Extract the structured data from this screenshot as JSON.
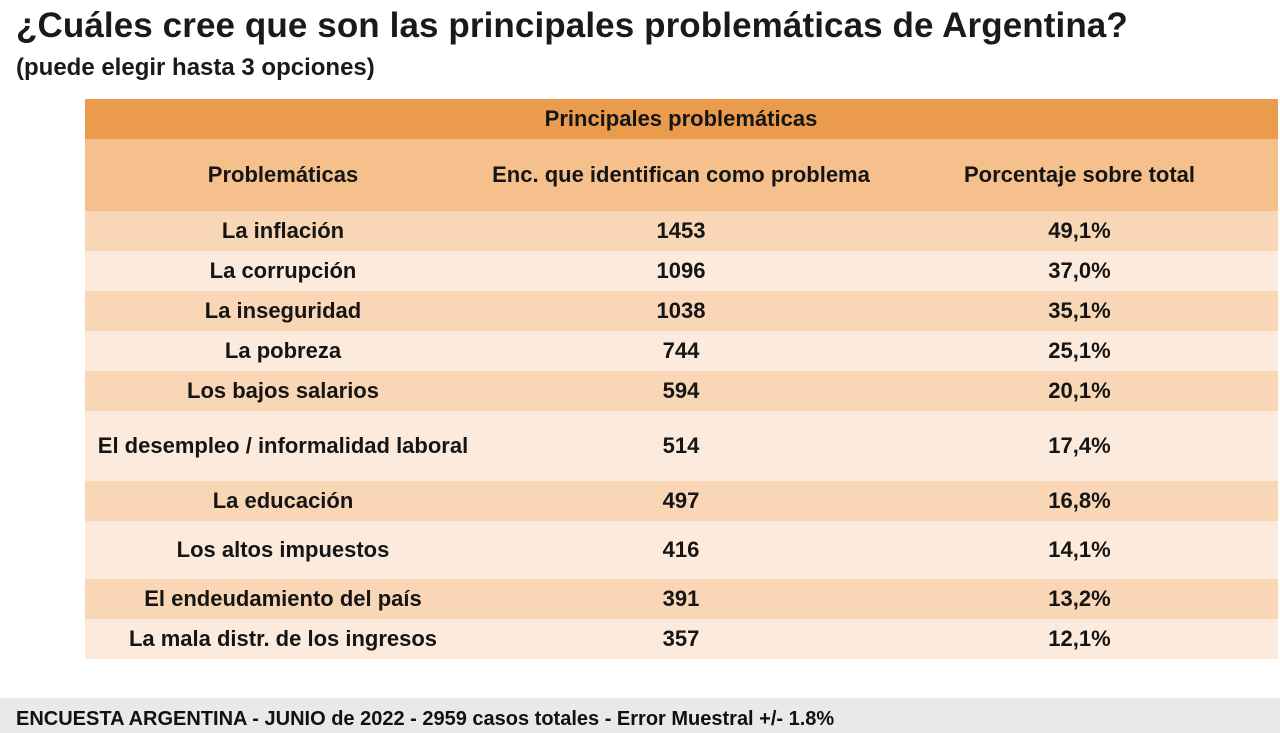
{
  "title": "¿Cuáles cree que son las principales problemáticas de Argentina?",
  "subtitle": "(puede elegir hasta 3 opciones)",
  "table": {
    "banner": "Principales problemáticas",
    "headers": [
      "Problemáticas",
      "Enc. que identifican como problema",
      "Porcentaje sobre total"
    ],
    "rows": [
      [
        "La inflación",
        "1453",
        "49,1%"
      ],
      [
        "La corrupción",
        "1096",
        "37,0%"
      ],
      [
        "La inseguridad",
        "1038",
        "35,1%"
      ],
      [
        "La pobreza",
        "744",
        "25,1%"
      ],
      [
        "Los bajos salarios",
        "594",
        "20,1%"
      ],
      [
        "El desempleo / informalidad laboral",
        "514",
        "17,4%"
      ],
      [
        "La educación",
        "497",
        "16,8%"
      ],
      [
        "Los altos impuestos",
        "416",
        "14,1%"
      ],
      [
        "El endeudamiento del país",
        "391",
        "13,2%"
      ],
      [
        "La mala distr. de los ingresos",
        "357",
        "12,1%"
      ]
    ]
  },
  "footer": "ENCUESTA ARGENTINA - JUNIO de 2022 -  2959 casos totales - Error Muestral +/- 1.8%",
  "colors": {
    "banner": "#ea9c4c",
    "header": "#f5c08c",
    "row_dark": "#f8d6b6",
    "row_light": "#fcebdc"
  }
}
